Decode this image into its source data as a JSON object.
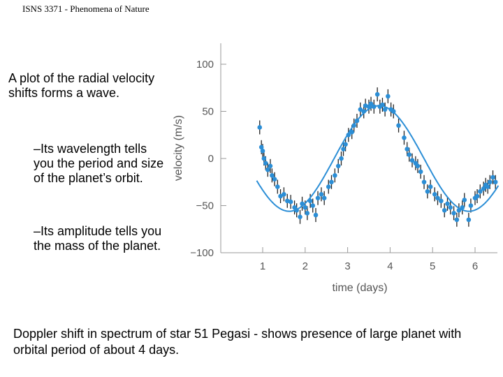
{
  "header": {
    "title": "ISNS 3371 - Phenomena of Nature"
  },
  "bullets": {
    "main": "A plot of the radial velocity shifts forms a wave.",
    "sub1": "–Its wavelength tells you the period and size of the planet’s orbit.",
    "sub2": "–Its amplitude tells you the mass of the planet."
  },
  "caption": "Doppler shift in spectrum of star 51 Pegasi - shows presence of large planet with orbital period of about 4 days.",
  "colors": {
    "points": "#2b8ed6",
    "curve": "#2b8ed6",
    "errorbars": "#222222",
    "axis": "#999999"
  },
  "chart_data": {
    "type": "scatter",
    "title": "",
    "xlabel": "time (days)",
    "ylabel": "velocity (m/s)",
    "xlim": [
      0.55,
      6.55
    ],
    "ylim": [
      -100,
      100
    ],
    "xticks": [
      1,
      2,
      3,
      4,
      5,
      6
    ],
    "xtick_labels": [
      "1",
      "2",
      "3",
      "4",
      "5",
      "6"
    ],
    "yticks": [
      100,
      50,
      0,
      -50,
      -100
    ],
    "ytick_labels": [
      "100",
      "50",
      "0",
      "−50",
      "−100"
    ],
    "grid": false,
    "model_curve": {
      "amplitude": 56,
      "period_days": 4.23,
      "peak_day": 3.74,
      "offset": 0
    },
    "points": [
      {
        "x": 0.93,
        "y": 33
      },
      {
        "x": 0.97,
        "y": 12
      },
      {
        "x": 1.0,
        "y": 8
      },
      {
        "x": 1.03,
        "y": 0
      },
      {
        "x": 1.07,
        "y": -5
      },
      {
        "x": 1.12,
        "y": -12
      },
      {
        "x": 1.18,
        "y": -8
      },
      {
        "x": 1.22,
        "y": -18
      },
      {
        "x": 1.28,
        "y": -22
      },
      {
        "x": 1.35,
        "y": -30
      },
      {
        "x": 1.42,
        "y": -40
      },
      {
        "x": 1.5,
        "y": -38
      },
      {
        "x": 1.58,
        "y": -45
      },
      {
        "x": 1.66,
        "y": -46
      },
      {
        "x": 1.75,
        "y": -52
      },
      {
        "x": 1.8,
        "y": -55
      },
      {
        "x": 1.88,
        "y": -62
      },
      {
        "x": 1.93,
        "y": -48
      },
      {
        "x": 2.0,
        "y": -52
      },
      {
        "x": 2.05,
        "y": -58
      },
      {
        "x": 2.12,
        "y": -45
      },
      {
        "x": 2.18,
        "y": -50
      },
      {
        "x": 2.25,
        "y": -60
      },
      {
        "x": 2.3,
        "y": -42
      },
      {
        "x": 2.38,
        "y": -38
      },
      {
        "x": 2.45,
        "y": -42
      },
      {
        "x": 2.55,
        "y": -30
      },
      {
        "x": 2.62,
        "y": -25
      },
      {
        "x": 2.7,
        "y": -18
      },
      {
        "x": 2.78,
        "y": -8
      },
      {
        "x": 2.85,
        "y": 0
      },
      {
        "x": 2.9,
        "y": 10
      },
      {
        "x": 2.95,
        "y": 15
      },
      {
        "x": 3.02,
        "y": 25
      },
      {
        "x": 3.1,
        "y": 28
      },
      {
        "x": 3.15,
        "y": 35
      },
      {
        "x": 3.22,
        "y": 40
      },
      {
        "x": 3.3,
        "y": 52
      },
      {
        "x": 3.38,
        "y": 50
      },
      {
        "x": 3.42,
        "y": 56
      },
      {
        "x": 3.5,
        "y": 55
      },
      {
        "x": 3.55,
        "y": 58
      },
      {
        "x": 3.62,
        "y": 55
      },
      {
        "x": 3.7,
        "y": 68
      },
      {
        "x": 3.76,
        "y": 55
      },
      {
        "x": 3.82,
        "y": 57
      },
      {
        "x": 3.88,
        "y": 52
      },
      {
        "x": 3.95,
        "y": 66
      },
      {
        "x": 4.02,
        "y": 52
      },
      {
        "x": 4.08,
        "y": 50
      },
      {
        "x": 4.2,
        "y": 35
      },
      {
        "x": 4.33,
        "y": 22
      },
      {
        "x": 4.4,
        "y": 10
      },
      {
        "x": 4.45,
        "y": 4
      },
      {
        "x": 4.52,
        "y": -2
      },
      {
        "x": 4.6,
        "y": -5
      },
      {
        "x": 4.65,
        "y": -8
      },
      {
        "x": 4.72,
        "y": -14
      },
      {
        "x": 4.8,
        "y": -25
      },
      {
        "x": 4.88,
        "y": -35
      },
      {
        "x": 4.95,
        "y": -30
      },
      {
        "x": 5.05,
        "y": -38
      },
      {
        "x": 5.12,
        "y": -42
      },
      {
        "x": 5.2,
        "y": -45
      },
      {
        "x": 5.28,
        "y": -55
      },
      {
        "x": 5.35,
        "y": -48
      },
      {
        "x": 5.42,
        "y": -52
      },
      {
        "x": 5.5,
        "y": -58
      },
      {
        "x": 5.57,
        "y": -65
      },
      {
        "x": 5.62,
        "y": -55
      },
      {
        "x": 5.7,
        "y": -52
      },
      {
        "x": 5.75,
        "y": -44
      },
      {
        "x": 5.85,
        "y": -65
      },
      {
        "x": 5.9,
        "y": -50
      },
      {
        "x": 6.0,
        "y": -42
      },
      {
        "x": 6.05,
        "y": -40
      },
      {
        "x": 6.12,
        "y": -35
      },
      {
        "x": 6.2,
        "y": -32
      },
      {
        "x": 6.25,
        "y": -28
      },
      {
        "x": 6.3,
        "y": -30
      },
      {
        "x": 6.35,
        "y": -25
      },
      {
        "x": 6.42,
        "y": -20
      },
      {
        "x": 6.48,
        "y": -25
      }
    ]
  }
}
